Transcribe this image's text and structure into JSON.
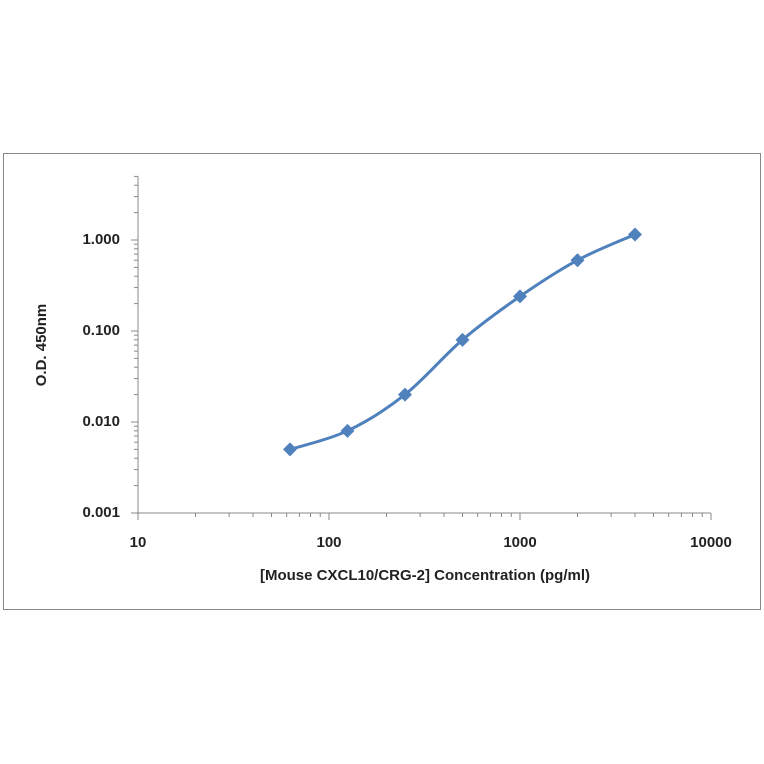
{
  "chart_data": {
    "type": "line",
    "x_label": "[Mouse CXCL10/CRG-2] Concentration (pg/ml)",
    "y_label": "O.D. 450nm",
    "x": [
      62.5,
      125,
      250,
      500,
      1000,
      2000,
      4000
    ],
    "series": [
      {
        "color": "#4f81bd",
        "values": [
          0.005,
          0.008,
          0.02,
          0.08,
          0.24,
          0.6,
          1.15
        ]
      }
    ],
    "xlim": [
      10,
      10000
    ],
    "xticks": [
      10,
      100,
      1000,
      10000
    ],
    "ylim": [
      0.001,
      5
    ],
    "yticks": [
      {
        "value": 0.001,
        "label": "0.001"
      },
      {
        "value": 0.01,
        "label": "0.010"
      },
      {
        "value": 0.1,
        "label": "0.100"
      },
      {
        "value": 1,
        "label": "1.000"
      }
    ],
    "x_log": true,
    "y_log": true
  }
}
